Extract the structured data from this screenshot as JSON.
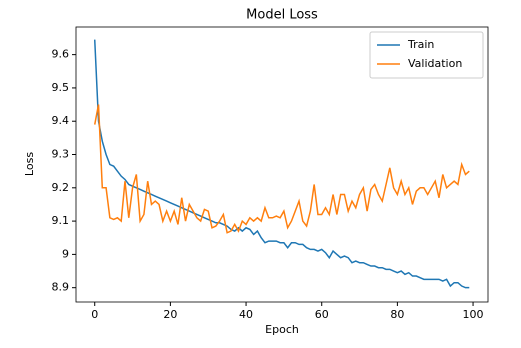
{
  "chart_data": {
    "type": "line",
    "title": "Model Loss",
    "x_label": "Epoch",
    "y_label": "Loss",
    "x": [
      0,
      1,
      2,
      3,
      4,
      5,
      6,
      7,
      8,
      9,
      10,
      11,
      12,
      13,
      14,
      15,
      16,
      17,
      18,
      19,
      20,
      21,
      22,
      23,
      24,
      25,
      26,
      27,
      28,
      29,
      30,
      31,
      32,
      33,
      34,
      35,
      36,
      37,
      38,
      39,
      40,
      41,
      42,
      43,
      44,
      45,
      46,
      47,
      48,
      49,
      50,
      51,
      52,
      53,
      54,
      55,
      56,
      57,
      58,
      59,
      60,
      61,
      62,
      63,
      64,
      65,
      66,
      67,
      68,
      69,
      70,
      71,
      72,
      73,
      74,
      75,
      76,
      77,
      78,
      79,
      80,
      81,
      82,
      83,
      84,
      85,
      86,
      87,
      88,
      89,
      90,
      91,
      92,
      93,
      94,
      95,
      96,
      97,
      98,
      99
    ],
    "series": [
      {
        "name": "Train",
        "color": "#1f77b4",
        "values": [
          9.645,
          9.4,
          9.34,
          9.3,
          9.27,
          9.265,
          9.25,
          9.235,
          9.225,
          9.21,
          9.205,
          9.2,
          9.195,
          9.19,
          9.185,
          9.18,
          9.175,
          9.17,
          9.165,
          9.16,
          9.155,
          9.15,
          9.145,
          9.14,
          9.135,
          9.13,
          9.125,
          9.12,
          9.115,
          9.11,
          9.105,
          9.1,
          9.095,
          9.095,
          9.09,
          9.085,
          9.075,
          9.07,
          9.08,
          9.07,
          9.08,
          9.075,
          9.06,
          9.07,
          9.05,
          9.035,
          9.04,
          9.04,
          9.04,
          9.035,
          9.035,
          9.02,
          9.035,
          9.035,
          9.03,
          9.03,
          9.02,
          9.015,
          9.015,
          9.01,
          9.015,
          9.005,
          8.99,
          9.01,
          9.0,
          8.99,
          8.995,
          8.99,
          8.975,
          8.98,
          8.975,
          8.975,
          8.97,
          8.965,
          8.965,
          8.96,
          8.96,
          8.955,
          8.955,
          8.95,
          8.945,
          8.95,
          8.94,
          8.945,
          8.935,
          8.935,
          8.93,
          8.925,
          8.925,
          8.925,
          8.925,
          8.925,
          8.92,
          8.925,
          8.905,
          8.915,
          8.915,
          8.905,
          8.9,
          8.9
        ]
      },
      {
        "name": "Validation",
        "color": "#ff7f0e",
        "values": [
          9.39,
          9.45,
          9.2,
          9.2,
          9.11,
          9.105,
          9.11,
          9.1,
          9.22,
          9.11,
          9.2,
          9.24,
          9.1,
          9.12,
          9.22,
          9.15,
          9.16,
          9.15,
          9.1,
          9.13,
          9.1,
          9.13,
          9.09,
          9.17,
          9.1,
          9.15,
          9.13,
          9.11,
          9.1,
          9.135,
          9.13,
          9.08,
          9.085,
          9.1,
          9.12,
          9.065,
          9.07,
          9.09,
          9.07,
          9.1,
          9.09,
          9.11,
          9.1,
          9.11,
          9.1,
          9.14,
          9.11,
          9.11,
          9.115,
          9.11,
          9.13,
          9.08,
          9.1,
          9.13,
          9.16,
          9.1,
          9.085,
          9.13,
          9.21,
          9.12,
          9.12,
          9.14,
          9.12,
          9.18,
          9.12,
          9.18,
          9.18,
          9.13,
          9.16,
          9.14,
          9.18,
          9.2,
          9.13,
          9.195,
          9.21,
          9.18,
          9.16,
          9.21,
          9.26,
          9.2,
          9.18,
          9.22,
          9.18,
          9.2,
          9.15,
          9.19,
          9.2,
          9.2,
          9.18,
          9.2,
          9.22,
          9.17,
          9.24,
          9.2,
          9.21,
          9.22,
          9.21,
          9.27,
          9.24,
          9.25
        ]
      }
    ],
    "xlim": [
      -4.95,
      103.95
    ],
    "xticks": [
      0,
      20,
      40,
      60,
      80,
      100
    ],
    "ylim": [
      8.857,
      9.683
    ],
    "yticks": [
      8.9,
      9.0,
      9.1,
      9.2,
      9.3,
      9.4,
      9.5,
      9.6
    ],
    "legend": "upper right"
  }
}
